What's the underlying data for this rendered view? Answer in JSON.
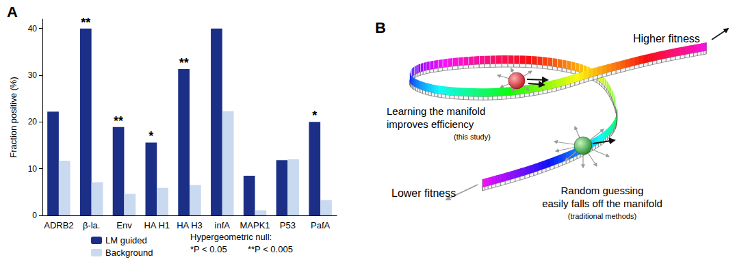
{
  "panel_labels": [
    "A",
    "B"
  ],
  "chart_data": {
    "type": "bar",
    "ylabel": "Fraction positive (%)",
    "categories": [
      "ADRB2",
      "β-la.",
      "Env",
      "HA H1",
      "HA H3",
      "infA",
      "MAPK1",
      "P53",
      "PafA"
    ],
    "series": [
      {
        "name": "LM guided",
        "color": "#1b2f87",
        "values": [
          22.2,
          40,
          18.9,
          15.6,
          31.3,
          40,
          8.5,
          11.8,
          20
        ],
        "annotations": [
          null,
          "**",
          "**",
          "*",
          "**",
          null,
          null,
          null,
          "*"
        ]
      },
      {
        "name": "Background",
        "color": "#c9d9f0",
        "values": [
          11.7,
          7.1,
          4.6,
          5.9,
          6.5,
          22.3,
          1.1,
          12.0,
          3.3
        ]
      }
    ],
    "ylim": [
      0,
      42
    ],
    "yticks": [
      0,
      10,
      20,
      30,
      40
    ],
    "grid": false,
    "legend": "bottom",
    "note": {
      "title": "Hypergeometric null:",
      "items": [
        "*P < 0.05",
        "**P < 0.005"
      ]
    }
  },
  "diagram": {
    "top_end": "Higher fitness",
    "bottom_end": "Lower fitness",
    "learned": [
      "Learning the manifold",
      "improves efficiency",
      "(this study)"
    ],
    "random": [
      "Random guessing",
      "easily falls off the manifold",
      "(traditional methods)"
    ]
  }
}
